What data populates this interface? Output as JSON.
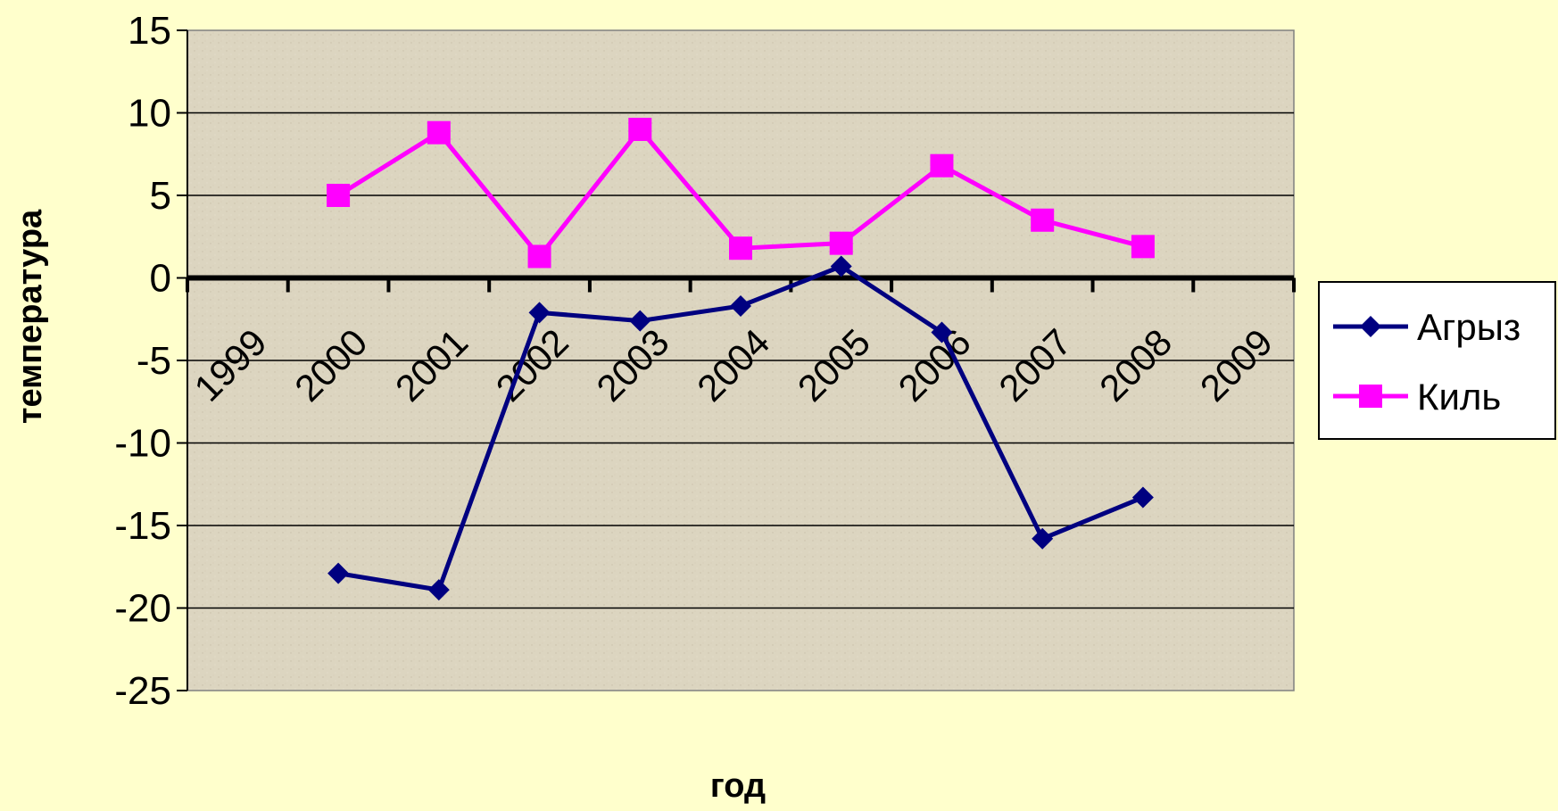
{
  "chart_data": {
    "type": "line",
    "xlabel": "год",
    "ylabel": "температура",
    "ylim": [
      -25,
      15
    ],
    "y_ticks": [
      15,
      10,
      5,
      0,
      -5,
      -10,
      -15,
      -20,
      -25
    ],
    "categories": [
      "1999",
      "2000",
      "2001",
      "2002",
      "2003",
      "2004",
      "2005",
      "2006",
      "2007",
      "2008",
      "2009"
    ],
    "grid": "horizontal",
    "legend_position": "right",
    "series": [
      {
        "name": "Агрыз",
        "color": "#000080",
        "marker": "diamond",
        "x": [
          "2000",
          "2001",
          "2002",
          "2003",
          "2004",
          "2005",
          "2006",
          "2007",
          "2008"
        ],
        "values": [
          -17.9,
          -18.9,
          -2.1,
          -2.6,
          -1.7,
          0.7,
          -3.3,
          -15.8,
          -13.3
        ]
      },
      {
        "name": "Киль",
        "color": "#FF00FF",
        "marker": "square",
        "x": [
          "2000",
          "2001",
          "2002",
          "2003",
          "2004",
          "2005",
          "2006",
          "2007",
          "2008"
        ],
        "values": [
          5.0,
          8.8,
          1.3,
          9.0,
          1.8,
          2.1,
          6.8,
          3.5,
          1.9
        ]
      }
    ],
    "plot_background": "#DCD5C0"
  }
}
